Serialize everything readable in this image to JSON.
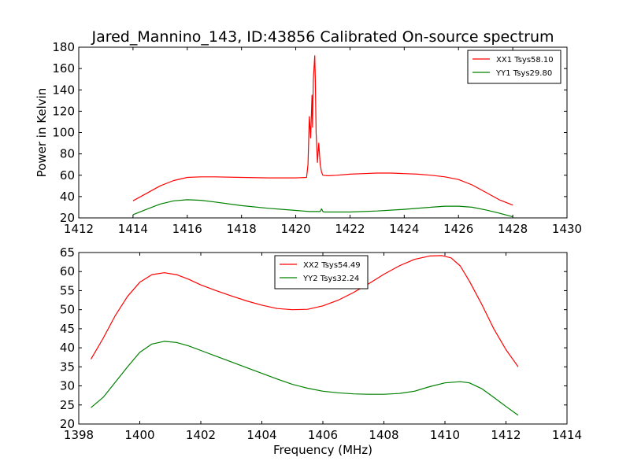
{
  "title": "Jared_Mannino_143, ID:43856 Calibrated On-source spectrum",
  "colors": {
    "xx": "#ff0000",
    "yy": "#008000",
    "axes": "#000000",
    "background": "#ffffff"
  },
  "chart_data": [
    {
      "type": "line",
      "xlabel": "",
      "ylabel": "Power in Kelvin",
      "xlim": [
        1412,
        1430
      ],
      "ylim": [
        20,
        180
      ],
      "xticks": [
        1412,
        1414,
        1416,
        1418,
        1420,
        1422,
        1424,
        1426,
        1428,
        1430
      ],
      "yticks": [
        20,
        40,
        60,
        80,
        100,
        120,
        140,
        160,
        180
      ],
      "grid": false,
      "legend_position": "top-right",
      "series": [
        {
          "name": "XX1 Tsys58.10",
          "color": "#ff0000",
          "x": [
            1414.0,
            1414.5,
            1415.0,
            1415.5,
            1416.0,
            1416.5,
            1417.0,
            1418.0,
            1419.0,
            1420.0,
            1420.4,
            1420.45,
            1420.5,
            1420.55,
            1420.6,
            1420.62,
            1420.65,
            1420.7,
            1420.72,
            1420.75,
            1420.8,
            1420.85,
            1420.9,
            1420.95,
            1421.0,
            1421.2,
            1421.5,
            1422.0,
            1422.5,
            1423.0,
            1423.5,
            1424.0,
            1424.5,
            1425.0,
            1425.5,
            1426.0,
            1426.5,
            1427.0,
            1427.5,
            1428.0
          ],
          "y": [
            36,
            43,
            50,
            55,
            58,
            58.5,
            58.5,
            58,
            57.5,
            57.5,
            58,
            70,
            115,
            95,
            135,
            105,
            150,
            172,
            150,
            100,
            72,
            90,
            70,
            63,
            60,
            59.5,
            60,
            61,
            61.5,
            62,
            62,
            61.5,
            61,
            60,
            58.5,
            56,
            51,
            44,
            37,
            32
          ]
        },
        {
          "name": "YY1 Tsys29.80",
          "color": "#008000",
          "x": [
            1414.0,
            1414.5,
            1415.0,
            1415.5,
            1416.0,
            1416.5,
            1417.0,
            1418.0,
            1419.0,
            1420.0,
            1420.5,
            1420.9,
            1420.95,
            1421.0,
            1421.05,
            1421.5,
            1422.0,
            1423.0,
            1424.0,
            1425.0,
            1425.5,
            1426.0,
            1426.5,
            1427.0,
            1427.5,
            1428.0
          ],
          "y": [
            23,
            28,
            33,
            36,
            37,
            36.5,
            35,
            31.5,
            29,
            27,
            26,
            26,
            28.5,
            26,
            25.5,
            25.5,
            25.5,
            26.5,
            28,
            30,
            31,
            31,
            30,
            27.5,
            24.5,
            21
          ]
        }
      ]
    },
    {
      "type": "line",
      "xlabel": "Frequency (MHz)",
      "ylabel": "",
      "xlim": [
        1398,
        1414
      ],
      "ylim": [
        20,
        65
      ],
      "xticks": [
        1398,
        1400,
        1402,
        1404,
        1406,
        1408,
        1410,
        1412,
        1414
      ],
      "yticks": [
        20,
        25,
        30,
        35,
        40,
        45,
        50,
        55,
        60,
        65
      ],
      "grid": false,
      "legend_position": "top-center",
      "series": [
        {
          "name": "XX2 Tsys54.49",
          "color": "#ff0000",
          "x": [
            1398.4,
            1398.8,
            1399.2,
            1399.6,
            1400.0,
            1400.4,
            1400.8,
            1401.2,
            1401.6,
            1402.0,
            1402.5,
            1403.0,
            1403.5,
            1404.0,
            1404.5,
            1405.0,
            1405.5,
            1406.0,
            1406.5,
            1407.0,
            1407.5,
            1408.0,
            1408.5,
            1409.0,
            1409.5,
            1409.9,
            1410.2,
            1410.5,
            1410.8,
            1411.2,
            1411.6,
            1412.0,
            1412.4
          ],
          "y": [
            37,
            42.5,
            48.5,
            53.5,
            57.2,
            59.2,
            59.7,
            59.2,
            58,
            56.5,
            55,
            53.6,
            52.3,
            51.2,
            50.3,
            50,
            50.1,
            51,
            52.5,
            54.5,
            56.8,
            59.3,
            61.5,
            63.2,
            64.1,
            64.2,
            63.6,
            61.5,
            57.5,
            51.5,
            45,
            39.5,
            35
          ]
        },
        {
          "name": "YY2 Tsys32.24",
          "color": "#008000",
          "x": [
            1398.4,
            1398.8,
            1399.2,
            1399.6,
            1400.0,
            1400.4,
            1400.8,
            1401.2,
            1401.6,
            1402.0,
            1402.5,
            1403.0,
            1403.5,
            1404.0,
            1404.5,
            1405.0,
            1405.5,
            1406.0,
            1406.5,
            1407.0,
            1407.5,
            1408.0,
            1408.5,
            1409.0,
            1409.5,
            1410.0,
            1410.5,
            1410.8,
            1411.2,
            1411.6,
            1412.0,
            1412.4
          ],
          "y": [
            24.3,
            27,
            31,
            35,
            38.8,
            41,
            41.7,
            41.4,
            40.5,
            39.3,
            37.8,
            36.3,
            34.8,
            33.3,
            31.8,
            30.4,
            29.4,
            28.6,
            28.2,
            27.9,
            27.8,
            27.8,
            28,
            28.6,
            29.8,
            30.8,
            31.1,
            30.8,
            29.3,
            27,
            24.6,
            22.3
          ]
        }
      ]
    }
  ]
}
